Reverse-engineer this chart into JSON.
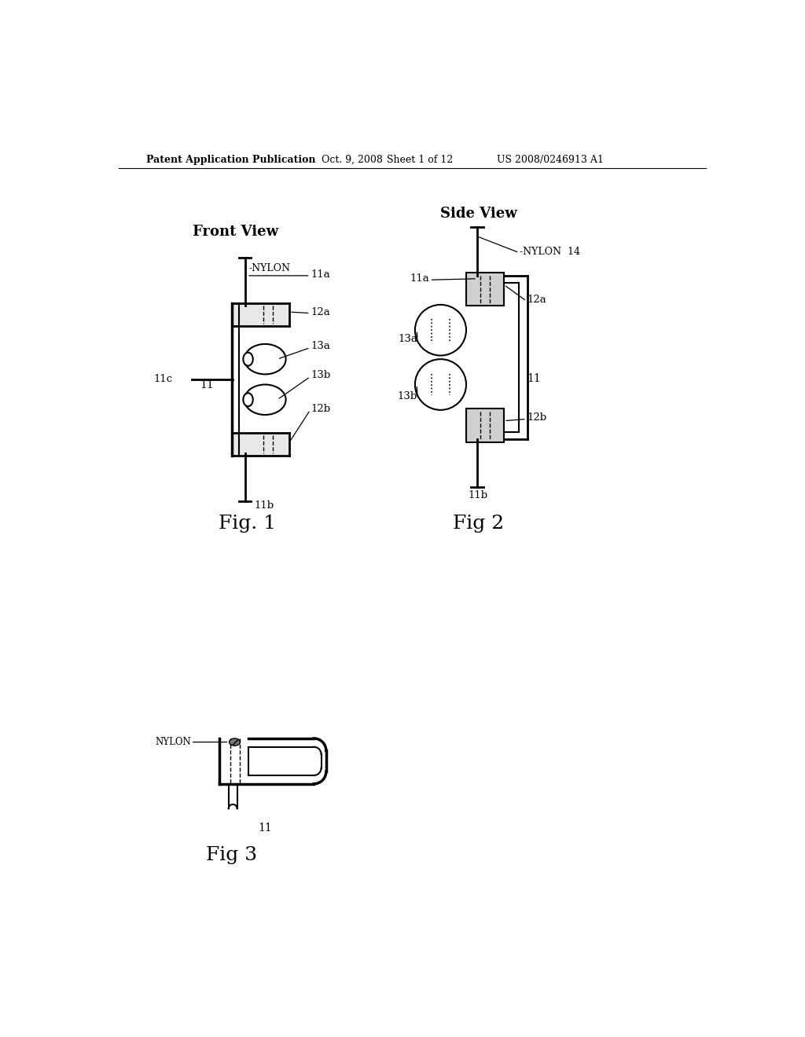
{
  "bg_color": "#ffffff",
  "header_text": "Patent Application Publication",
  "header_date": "Oct. 9, 2008",
  "header_sheet": "Sheet 1 of 12",
  "header_patent": "US 2008/0246913 A1",
  "fig1_title": "Front View",
  "fig2_title": "Side View",
  "fig1_label": "Fig. 1",
  "fig2_label": "Fig 2",
  "fig3_label": "Fig 3",
  "fig3_sublabel": "11"
}
